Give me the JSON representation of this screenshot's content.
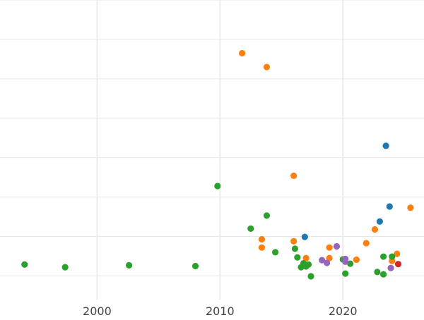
{
  "chart_data": {
    "type": "scatter",
    "title": "",
    "xlabel": "",
    "ylabel": "",
    "x_ticks": [
      2000,
      2010,
      2020
    ],
    "xlim": [
      1992.1,
      2026.6
    ],
    "ylim": [
      -0.6,
      7.0
    ],
    "grid": true,
    "legend": "none",
    "series": [
      {
        "color": "#1f77b4",
        "points": [
          {
            "x": 2023.5,
            "y": 3.3
          },
          {
            "x": 2023.8,
            "y": 1.76
          },
          {
            "x": 2023.0,
            "y": 1.38
          },
          {
            "x": 2016.9,
            "y": 0.99
          }
        ]
      },
      {
        "color": "#ff7f0e",
        "points": [
          {
            "x": 2011.8,
            "y": 5.65
          },
          {
            "x": 2013.8,
            "y": 5.3
          },
          {
            "x": 2016.0,
            "y": 2.54
          },
          {
            "x": 2025.5,
            "y": 1.73
          },
          {
            "x": 2022.6,
            "y": 1.18
          },
          {
            "x": 2013.4,
            "y": 0.93
          },
          {
            "x": 2016.0,
            "y": 0.88
          },
          {
            "x": 2021.9,
            "y": 0.83
          },
          {
            "x": 2013.4,
            "y": 0.72
          },
          {
            "x": 2018.9,
            "y": 0.72
          },
          {
            "x": 2024.4,
            "y": 0.56
          },
          {
            "x": 2017.0,
            "y": 0.45
          },
          {
            "x": 2018.9,
            "y": 0.45
          },
          {
            "x": 2021.1,
            "y": 0.41
          },
          {
            "x": 2024.0,
            "y": 0.38
          }
        ]
      },
      {
        "color": "#2ca02c",
        "points": [
          {
            "x": 2009.8,
            "y": 2.28
          },
          {
            "x": 2013.8,
            "y": 1.53
          },
          {
            "x": 2012.5,
            "y": 1.2
          },
          {
            "x": 2016.1,
            "y": 0.69
          },
          {
            "x": 2014.5,
            "y": 0.6
          },
          {
            "x": 2016.3,
            "y": 0.47
          },
          {
            "x": 2020.0,
            "y": 0.42
          },
          {
            "x": 2023.3,
            "y": 0.49
          },
          {
            "x": 2024.0,
            "y": 0.49
          },
          {
            "x": 1994.1,
            "y": 0.29
          },
          {
            "x": 1997.4,
            "y": 0.22
          },
          {
            "x": 2002.6,
            "y": 0.27
          },
          {
            "x": 2008.0,
            "y": 0.25
          },
          {
            "x": 2016.8,
            "y": 0.32
          },
          {
            "x": 2017.2,
            "y": 0.29
          },
          {
            "x": 2016.6,
            "y": 0.22
          },
          {
            "x": 2017.0,
            "y": 0.24
          },
          {
            "x": 2020.6,
            "y": 0.31
          },
          {
            "x": 2022.8,
            "y": 0.1
          },
          {
            "x": 2023.3,
            "y": 0.04
          },
          {
            "x": 2020.2,
            "y": 0.06
          },
          {
            "x": 2017.4,
            "y": -0.01
          }
        ]
      },
      {
        "color": "#d62728",
        "points": [
          {
            "x": 2024.5,
            "y": 0.3
          }
        ]
      },
      {
        "color": "#9467bd",
        "points": [
          {
            "x": 2019.5,
            "y": 0.75
          },
          {
            "x": 2018.3,
            "y": 0.4
          },
          {
            "x": 2018.7,
            "y": 0.33
          },
          {
            "x": 2020.2,
            "y": 0.43
          },
          {
            "x": 2020.2,
            "y": 0.36
          },
          {
            "x": 2023.9,
            "y": 0.2
          }
        ]
      }
    ]
  }
}
